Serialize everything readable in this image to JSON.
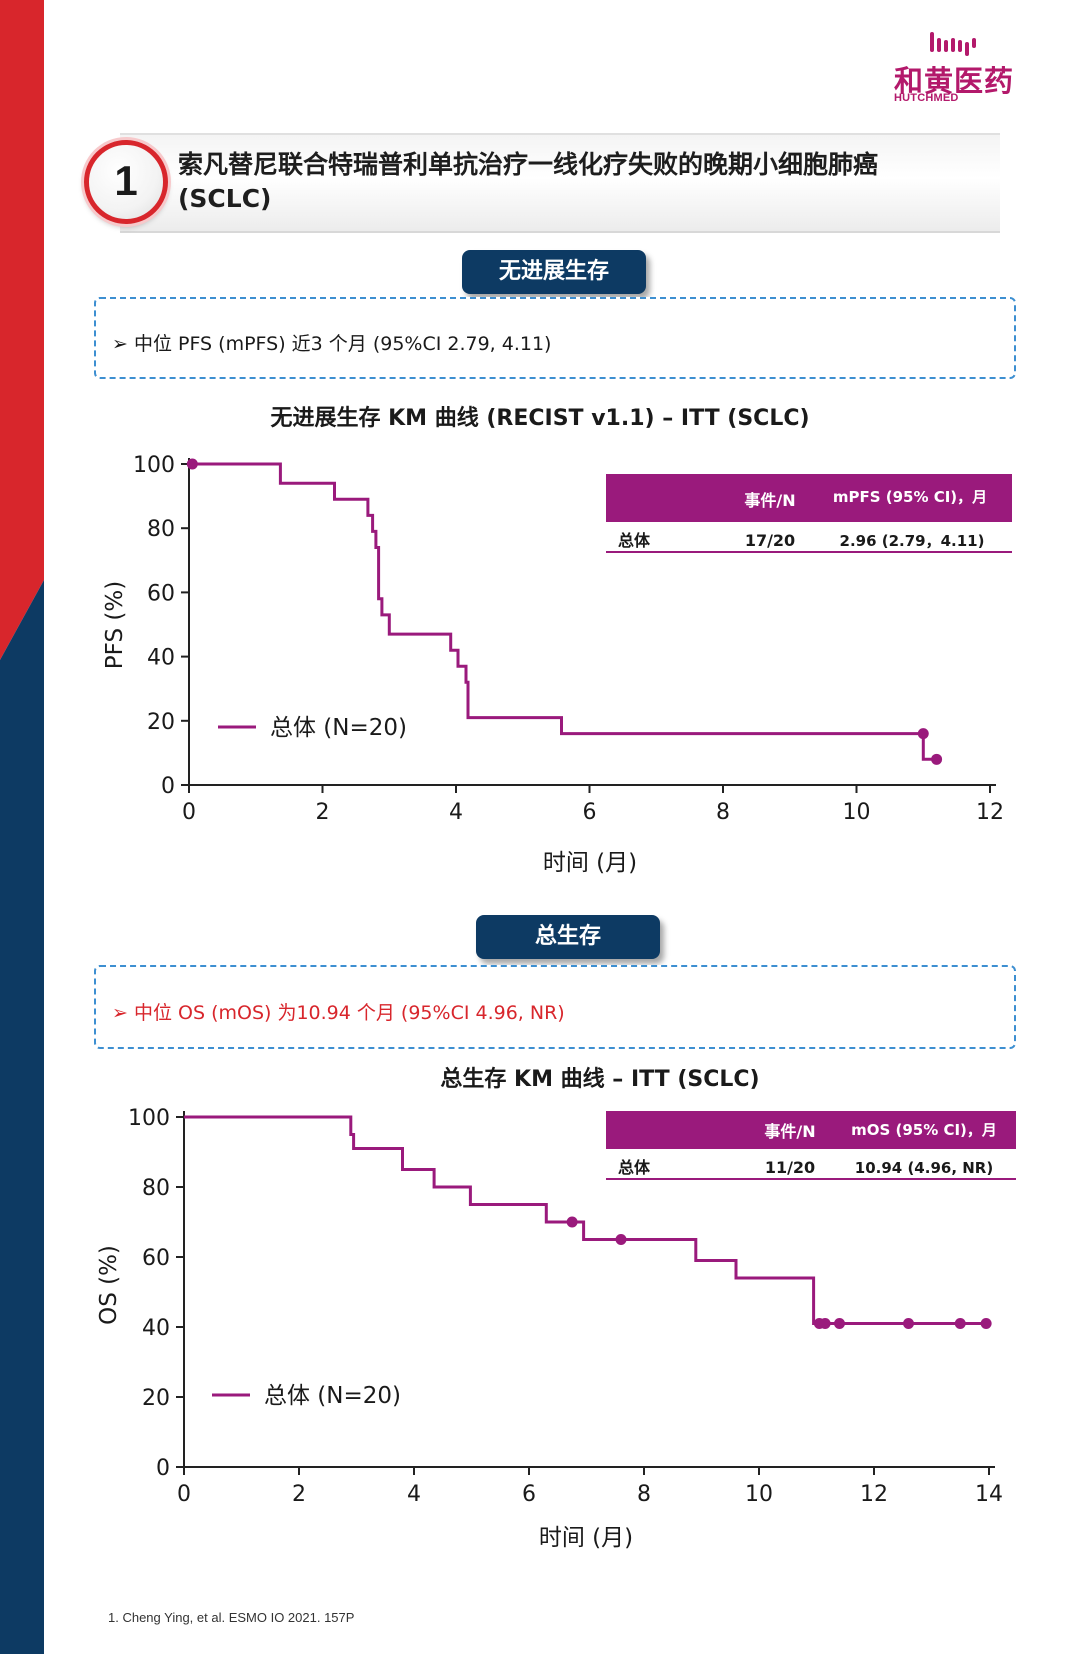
{
  "logo": {
    "name_cn": "和黄医药",
    "name_en": "HUTCHMED"
  },
  "section": {
    "number": "1",
    "title_line1": "索凡替尼联合特瑞普利单抗治疗一线化疗失败的晚期小细胞肺癌",
    "title_line2": "(SCLC)"
  },
  "pfs": {
    "pill_label": "无进展生存",
    "summary": "中位 PFS (mPFS) 近3 个月 (95%CI 2.79, 4.11)"
  },
  "os": {
    "pill_label": "总生存",
    "summary": "中位 OS (mOS) 为10.94 个月 (95%CI 4.96, NR)"
  },
  "footnote": "1. Cheng Ying, et al. ESMO IO 2021. 157P",
  "colors": {
    "curve": "#9a1a7c",
    "table_header": "#9a1a7c",
    "pill": "#0d3a63",
    "red": "#d8262c",
    "navy": "#0d3a63",
    "os_summary_text": "#d8262c",
    "dashed_border": "#3d8fd1"
  },
  "chart_data": [
    {
      "type": "line",
      "subtype": "kaplan-meier",
      "title": "无进展生存 KM 曲线 (RECIST v1.1) – ITT (SCLC)",
      "xlabel": "时间 (月)",
      "ylabel": "PFS (%)",
      "xlim": [
        0,
        12
      ],
      "ylim": [
        0,
        100
      ],
      "xticks": [
        0,
        2,
        4,
        6,
        8,
        10,
        12
      ],
      "yticks": [
        0,
        20,
        40,
        60,
        80,
        100
      ],
      "legend": "总体 (N=20)",
      "legend_position": "bottom-left",
      "series": [
        {
          "name": "总体 (N=20)",
          "steps": [
            [
              0,
              100
            ],
            [
              1.37,
              100
            ],
            [
              1.37,
              94
            ],
            [
              2.18,
              94
            ],
            [
              2.18,
              89
            ],
            [
              2.68,
              89
            ],
            [
              2.68,
              84
            ],
            [
              2.75,
              84
            ],
            [
              2.75,
              79
            ],
            [
              2.8,
              79
            ],
            [
              2.8,
              74
            ],
            [
              2.84,
              74
            ],
            [
              2.84,
              58
            ],
            [
              2.89,
              58
            ],
            [
              2.89,
              53
            ],
            [
              3.0,
              53
            ],
            [
              3.0,
              47
            ],
            [
              3.92,
              47
            ],
            [
              3.92,
              42
            ],
            [
              4.03,
              42
            ],
            [
              4.03,
              37
            ],
            [
              4.15,
              37
            ],
            [
              4.15,
              32
            ],
            [
              4.18,
              32
            ],
            [
              4.18,
              21
            ],
            [
              5.58,
              21
            ],
            [
              5.58,
              16
            ],
            [
              11.0,
              16
            ],
            [
              11.0,
              8
            ],
            [
              11.2,
              8
            ]
          ],
          "censored": [
            [
              0.05,
              100
            ],
            [
              11.0,
              16
            ],
            [
              11.2,
              8
            ]
          ]
        }
      ],
      "table": {
        "headers": [
          "",
          "事件/N",
          "mPFS (95% CI)，月"
        ],
        "rows": [
          [
            "总体",
            "17/20",
            "2.96 (2.79，4.11)"
          ]
        ]
      }
    },
    {
      "type": "line",
      "subtype": "kaplan-meier",
      "title": "总生存 KM 曲线 – ITT (SCLC)",
      "xlabel": "时间 (月)",
      "ylabel": "OS (%)",
      "xlim": [
        0,
        14
      ],
      "ylim": [
        0,
        100
      ],
      "xticks": [
        0,
        2,
        4,
        6,
        8,
        10,
        12,
        14
      ],
      "yticks": [
        0,
        20,
        40,
        60,
        80,
        100
      ],
      "legend": "总体 (N=20)",
      "legend_position": "bottom-left",
      "series": [
        {
          "name": "总体 (N=20)",
          "steps": [
            [
              0,
              100
            ],
            [
              2.9,
              100
            ],
            [
              2.9,
              95
            ],
            [
              2.95,
              95
            ],
            [
              2.95,
              91
            ],
            [
              3.8,
              91
            ],
            [
              3.8,
              85
            ],
            [
              4.35,
              85
            ],
            [
              4.35,
              80
            ],
            [
              4.98,
              80
            ],
            [
              4.98,
              75
            ],
            [
              6.3,
              75
            ],
            [
              6.3,
              70
            ],
            [
              6.95,
              70
            ],
            [
              6.95,
              65
            ],
            [
              8.9,
              65
            ],
            [
              8.9,
              59
            ],
            [
              9.6,
              59
            ],
            [
              9.6,
              54
            ],
            [
              10.95,
              54
            ],
            [
              10.95,
              41
            ],
            [
              14.0,
              41
            ]
          ],
          "censored": [
            [
              6.75,
              70
            ],
            [
              7.6,
              65
            ],
            [
              11.05,
              41
            ],
            [
              11.15,
              41
            ],
            [
              11.4,
              41
            ],
            [
              12.6,
              41
            ],
            [
              13.5,
              41
            ],
            [
              13.95,
              41
            ]
          ]
        }
      ],
      "table": {
        "headers": [
          "",
          "事件/N",
          "mOS (95% CI)，月"
        ],
        "rows": [
          [
            "总体",
            "11/20",
            "10.94 (4.96, NR)"
          ]
        ]
      }
    }
  ]
}
